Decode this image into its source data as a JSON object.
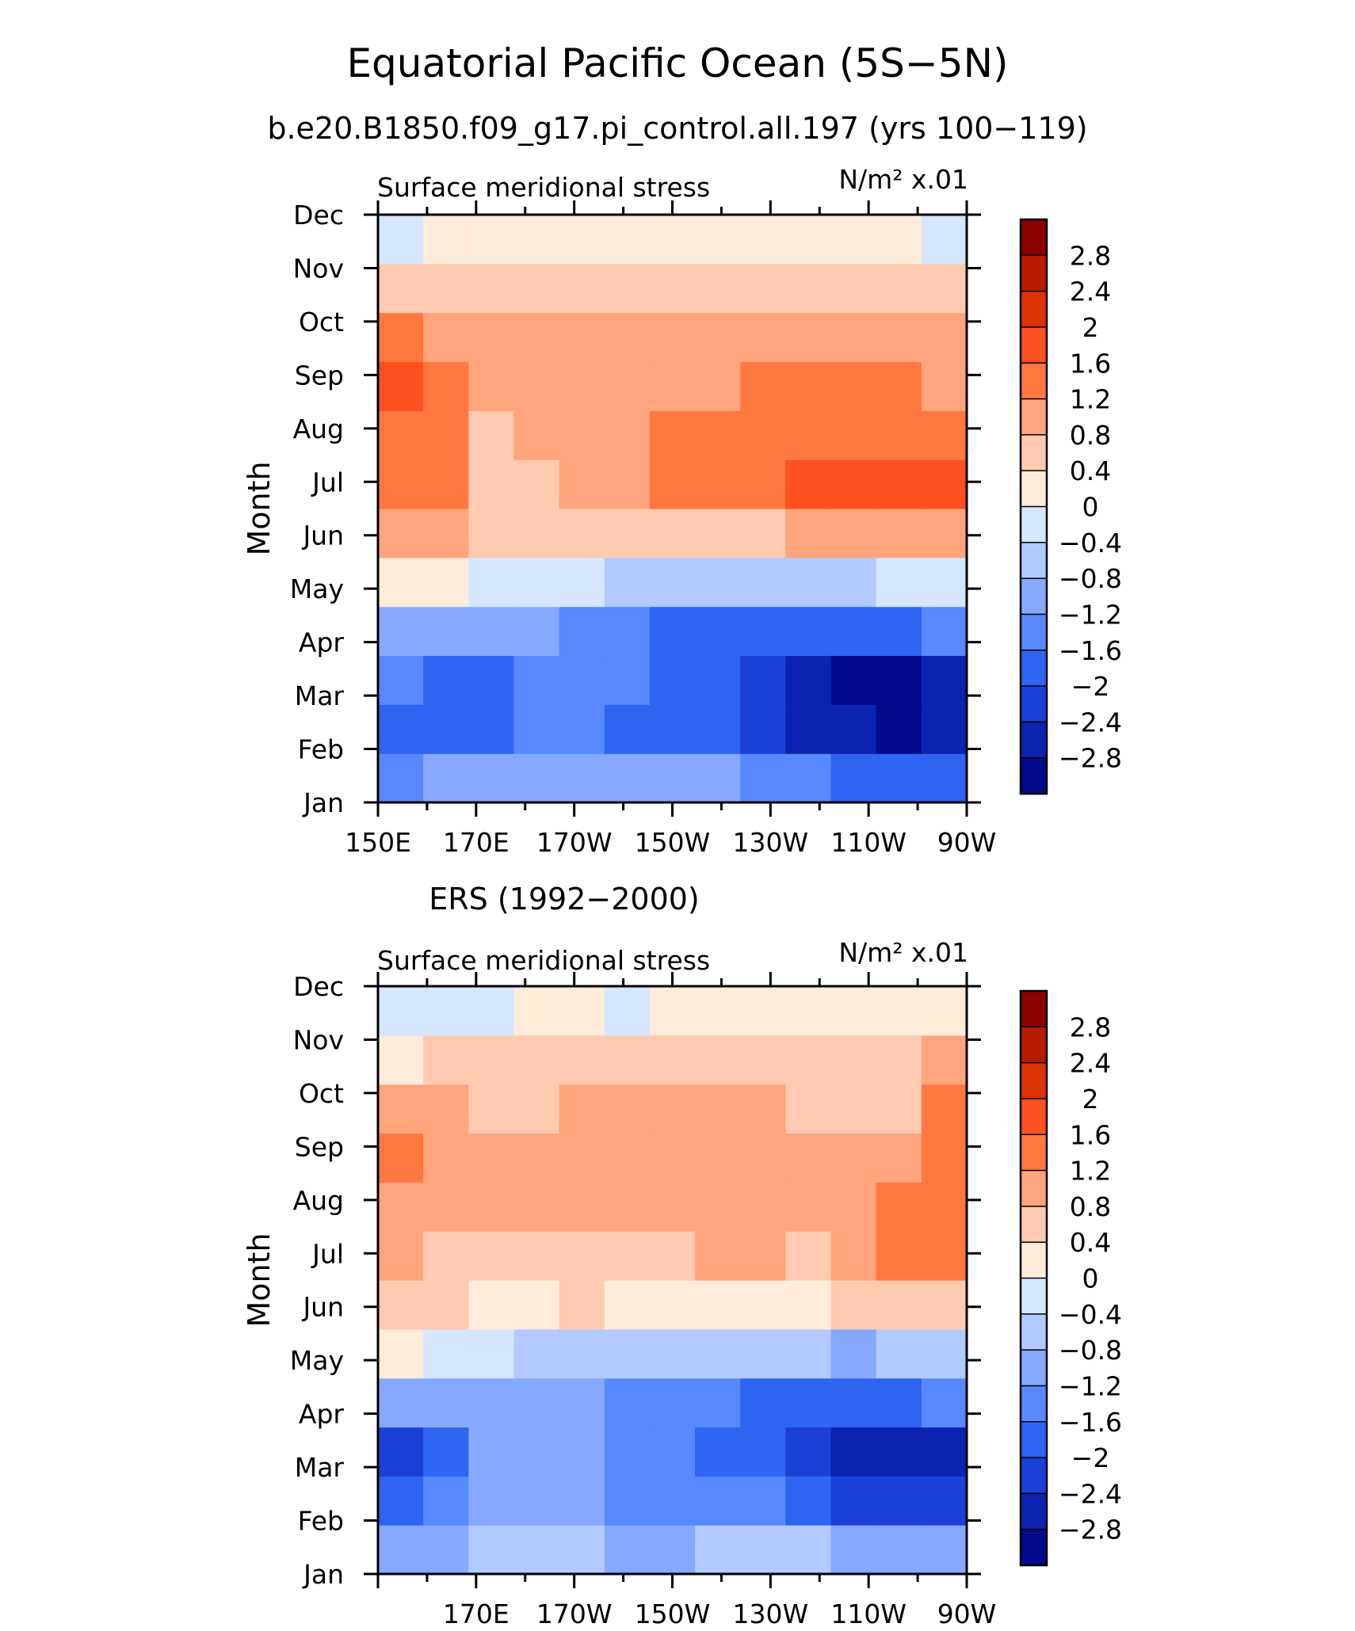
{
  "page": {
    "title": "Equatorial Pacific Ocean (5S−5N)",
    "subtitle": "b.e20.B1850.f09_g17.pi_control.all.197 (yrs 100−119)"
  },
  "colorbar": {
    "labels": [
      "2.8",
      "2.4",
      "2",
      "1.6",
      "1.2",
      "0.8",
      "0.4",
      "0",
      "−0.4",
      "−0.8",
      "−1.2",
      "−1.6",
      "−2",
      "−2.4",
      "−2.8"
    ],
    "colors": [
      "#8b0000",
      "#b81c00",
      "#de3200",
      "#ff5020",
      "#ff7840",
      "#ffa47c",
      "#ffcab0",
      "#ffebda",
      "#d6e6ff",
      "#b2caff",
      "#86a8ff",
      "#5888ff",
      "#2e64f2",
      "#1a40d8",
      "#0c22b0",
      "#020a8a"
    ]
  },
  "chart_data": [
    {
      "type": "heatmap",
      "panel_title": "",
      "title": "Surface meridional stress",
      "units": "N/m² x.01",
      "ylabel": "Month",
      "months": [
        "Jan",
        "Feb",
        "Mar",
        "Apr",
        "May",
        "Jun",
        "Jul",
        "Aug",
        "Sep",
        "Oct",
        "Nov",
        "Dec"
      ],
      "x_tick_labels": [
        "150E",
        "170E",
        "170W",
        "150W",
        "130W",
        "110W",
        "90W"
      ],
      "longitudes": [
        "150E",
        "160E",
        "170E",
        "180",
        "170W",
        "160W",
        "150W",
        "140W",
        "130W",
        "120W",
        "110W",
        "100W",
        "90W"
      ],
      "values": [
        [
          -1.3,
          -1.2,
          -1.0,
          -0.9,
          -0.9,
          -1.0,
          -1.1,
          -1.2,
          -1.4,
          -1.6,
          -1.7,
          -1.9,
          -1.8
        ],
        [
          -2.0,
          -1.9,
          -1.7,
          -1.6,
          -1.6,
          -1.7,
          -1.8,
          -2.0,
          -2.3,
          -2.6,
          -2.8,
          -3.0,
          -2.6
        ],
        [
          -1.6,
          -1.7,
          -1.7,
          -1.6,
          -1.6,
          -1.6,
          -1.7,
          -2.0,
          -2.4,
          -2.8,
          -3.0,
          -3.0,
          -2.6
        ],
        [
          -1.2,
          -1.2,
          -1.2,
          -1.2,
          -1.3,
          -1.5,
          -1.7,
          -1.8,
          -1.9,
          -1.9,
          -1.8,
          -1.7,
          -1.4
        ],
        [
          0.1,
          0.0,
          -0.2,
          -0.3,
          -0.4,
          -0.5,
          -0.6,
          -0.7,
          -0.7,
          -0.6,
          -0.5,
          -0.3,
          -0.1
        ],
        [
          0.9,
          0.8,
          0.6,
          0.5,
          0.4,
          0.4,
          0.5,
          0.6,
          0.7,
          0.8,
          0.9,
          1.0,
          1.0
        ],
        [
          1.4,
          1.2,
          0.7,
          0.6,
          0.8,
          1.0,
          1.3,
          1.4,
          1.5,
          1.6,
          1.8,
          1.9,
          1.6
        ],
        [
          1.5,
          1.2,
          0.7,
          0.8,
          0.9,
          1.1,
          1.4,
          1.5,
          1.5,
          1.5,
          1.5,
          1.5,
          1.3
        ],
        [
          1.8,
          1.4,
          1.1,
          1.0,
          1.0,
          1.0,
          1.1,
          1.1,
          1.2,
          1.3,
          1.3,
          1.2,
          1.0
        ],
        [
          1.2,
          1.0,
          0.9,
          0.9,
          0.9,
          0.9,
          0.9,
          0.9,
          0.9,
          1.0,
          1.0,
          0.9,
          0.8
        ],
        [
          0.4,
          0.4,
          0.4,
          0.4,
          0.4,
          0.4,
          0.4,
          0.4,
          0.5,
          0.6,
          0.7,
          0.6,
          0.4
        ],
        [
          -0.2,
          0.0,
          0.1,
          0.2,
          0.2,
          0.2,
          0.2,
          0.1,
          0.1,
          0.2,
          0.2,
          0.1,
          -0.1
        ]
      ]
    },
    {
      "type": "heatmap",
      "panel_title": "ERS (1992−2000)",
      "title": "Surface meridional stress",
      "units": "N/m² x.01",
      "ylabel": "Month",
      "months": [
        "Jan",
        "Feb",
        "Mar",
        "Apr",
        "May",
        "Jun",
        "Jul",
        "Aug",
        "Sep",
        "Oct",
        "Nov",
        "Dec"
      ],
      "x_tick_labels": [
        "",
        "170E",
        "170W",
        "150W",
        "130W",
        "110W",
        "90W"
      ],
      "longitudes": [
        "150E",
        "160E",
        "170E",
        "180",
        "170W",
        "160W",
        "150W",
        "140W",
        "130W",
        "120W",
        "110W",
        "100W",
        "90W"
      ],
      "values": [
        [
          -1.1,
          -1.0,
          -0.8,
          -0.7,
          -0.8,
          -0.9,
          -0.9,
          -0.8,
          -0.7,
          -0.8,
          -0.9,
          -1.0,
          -1.2
        ],
        [
          -1.7,
          -1.5,
          -0.9,
          -1.1,
          -1.2,
          -1.3,
          -1.3,
          -1.4,
          -1.6,
          -1.9,
          -2.2,
          -2.4,
          -2.3
        ],
        [
          -2.1,
          -1.8,
          -1.0,
          -1.1,
          -1.2,
          -1.4,
          -1.5,
          -1.8,
          -2.0,
          -2.3,
          -2.6,
          -2.7,
          -2.5
        ],
        [
          -1.2,
          -1.2,
          -1.1,
          -1.1,
          -1.2,
          -1.3,
          -1.5,
          -1.6,
          -1.7,
          -1.8,
          -1.9,
          -1.8,
          -1.5
        ],
        [
          0.1,
          -0.2,
          -0.4,
          -0.5,
          -0.6,
          -0.6,
          -0.6,
          -0.7,
          -0.8,
          -0.8,
          -0.9,
          -0.8,
          -0.6
        ],
        [
          0.5,
          0.4,
          0.3,
          0.3,
          0.4,
          0.3,
          0.3,
          0.3,
          0.2,
          0.2,
          0.4,
          0.6,
          0.7
        ],
        [
          0.9,
          0.7,
          0.6,
          0.6,
          0.7,
          0.6,
          0.7,
          0.8,
          0.8,
          0.7,
          0.9,
          1.3,
          1.5
        ],
        [
          1.0,
          0.8,
          0.9,
          0.8,
          0.9,
          0.9,
          0.9,
          0.9,
          0.8,
          0.8,
          0.9,
          1.3,
          1.4
        ],
        [
          1.3,
          0.9,
          0.9,
          0.8,
          1.0,
          1.0,
          0.9,
          1.0,
          1.0,
          0.9,
          0.8,
          0.9,
          1.3
        ],
        [
          0.9,
          0.8,
          0.7,
          0.7,
          0.8,
          0.8,
          0.8,
          0.8,
          0.8,
          0.7,
          0.7,
          0.7,
          1.2
        ],
        [
          0.3,
          0.4,
          0.5,
          0.4,
          0.4,
          0.4,
          0.4,
          0.5,
          0.5,
          0.5,
          0.6,
          0.5,
          0.9
        ],
        [
          -0.1,
          -0.2,
          -0.1,
          0.0,
          0.0,
          -0.1,
          0.1,
          0.1,
          0.1,
          0.2,
          0.3,
          0.3,
          0.2
        ]
      ]
    }
  ]
}
